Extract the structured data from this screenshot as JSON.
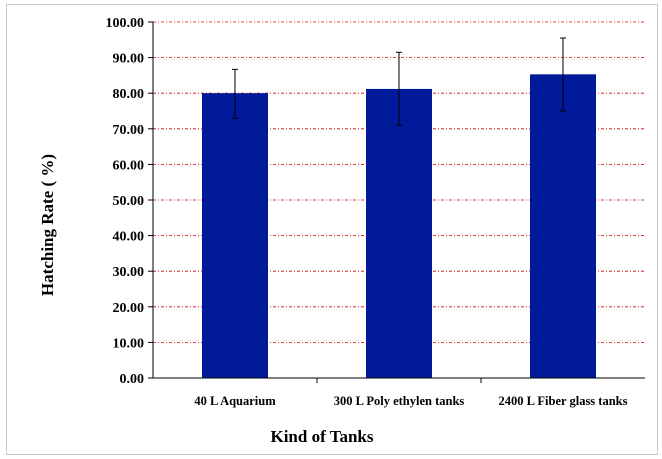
{
  "chart_data": {
    "type": "bar",
    "categories": [
      "40 L Aquarium",
      "300 L Poly ethylen tanks",
      "2400 L Fiber glass tanks"
    ],
    "values": [
      80.0,
      81.2,
      85.3
    ],
    "error_bars": [
      {
        "lower": 73.0,
        "upper": 86.7
      },
      {
        "lower": 71.0,
        "upper": 91.5
      },
      {
        "lower": 75.0,
        "upper": 95.5
      }
    ],
    "xlabel": "Kind of Tanks",
    "ylabel": "Hatching Rate ( %)",
    "ylim": [
      0,
      100
    ],
    "yticks": [
      "0.00",
      "10.00",
      "20.00",
      "30.00",
      "40.00",
      "50.00",
      "60.00",
      "70.00",
      "80.00",
      "90.00",
      "100.00"
    ],
    "grid": "horizontal dashed",
    "bar_color": "#001a99",
    "grid_color": "#cc0000"
  }
}
